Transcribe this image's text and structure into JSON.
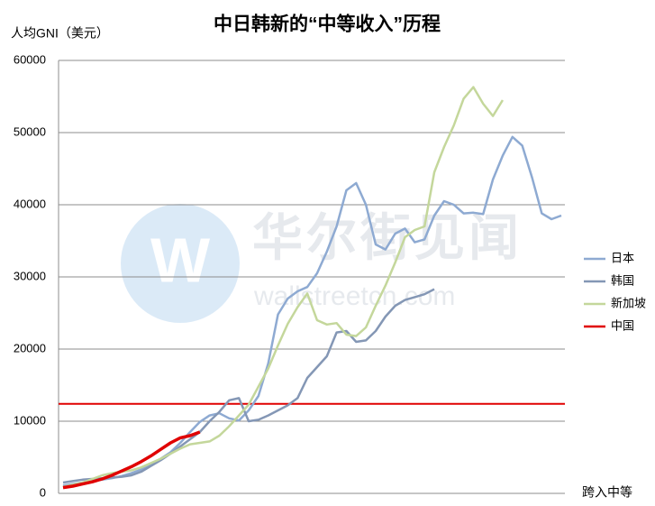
{
  "chart_data": {
    "type": "line",
    "title": "中日韩新的“中等收入”历程",
    "ylabel": "人均GNI（美元）",
    "xlabel": "跨入中等",
    "watermark": {
      "name": "华尔街见闻",
      "url": "wallstreetcn.com"
    },
    "categories": [
      null,
      null,
      null,
      null,
      null,
      null,
      null,
      null,
      null,
      null,
      null,
      null,
      null,
      null,
      null,
      null,
      null,
      null,
      null,
      null,
      null,
      null,
      null,
      null,
      null,
      null,
      null,
      null,
      null,
      null,
      null,
      null,
      null,
      null,
      null,
      null,
      null,
      null,
      null,
      null,
      null,
      null,
      null,
      null,
      null,
      null,
      null,
      null,
      null,
      null,
      null,
      null
    ],
    "series": [
      {
        "name": "日本",
        "color": "#8eaad2",
        "values": [
          1100,
          1300,
          1500,
          1700,
          1900,
          2100,
          2400,
          2800,
          3300,
          4000,
          4800,
          5700,
          7000,
          8500,
          9900,
          10800,
          11100,
          10400,
          10100,
          11500,
          13500,
          18000,
          24800,
          27000,
          28000,
          28600,
          30500,
          33500,
          37000,
          42000,
          43000,
          40000,
          34500,
          33800,
          36000,
          36700,
          34800,
          35200,
          38500,
          40500,
          40000,
          38800,
          38900,
          38700,
          43500,
          46800,
          49400,
          48200,
          43800,
          38800,
          38000,
          38500
        ]
      },
      {
        "name": "韩国",
        "color": "#8497b5",
        "values": [
          1500,
          1700,
          1900,
          2000,
          2100,
          2200,
          2300,
          2500,
          3000,
          3800,
          4600,
          5500,
          6500,
          7500,
          8500,
          10000,
          11300,
          12900,
          13200,
          10000,
          10200,
          10800,
          11500,
          12200,
          13200,
          16000,
          17500,
          19000,
          22300,
          22500,
          21000,
          21200,
          22500,
          24500,
          26000,
          26800,
          27200,
          27600,
          28300,
          null,
          null,
          null,
          null,
          null,
          null,
          null,
          null,
          null,
          null,
          null,
          null,
          null
        ]
      },
      {
        "name": "新加坡",
        "color": "#c4d79b",
        "values": [
          900,
          1200,
          1500,
          2000,
          2500,
          2800,
          3000,
          3200,
          3600,
          4200,
          4800,
          5500,
          6200,
          6800,
          7000,
          7200,
          8000,
          9300,
          10800,
          12300,
          14800,
          17300,
          20500,
          23500,
          25800,
          27700,
          24000,
          23400,
          23600,
          22000,
          21800,
          23000,
          26000,
          28800,
          32000,
          35500,
          36500,
          37000,
          44500,
          48000,
          51000,
          54700,
          56300,
          54000,
          52300,
          54500,
          null,
          null,
          null,
          null,
          null,
          null
        ]
      },
      {
        "name": "中国",
        "color": "#e00000",
        "values": [
          800,
          1000,
          1300,
          1600,
          2000,
          2500,
          3100,
          3700,
          4400,
          5200,
          6100,
          7000,
          7700,
          8000,
          8500,
          null,
          null,
          null,
          null,
          null,
          null,
          null,
          null,
          null,
          null,
          null,
          null,
          null,
          null,
          null,
          null,
          null,
          null,
          null,
          null,
          null,
          null,
          null,
          null,
          null,
          null,
          null,
          null,
          null,
          null,
          null,
          null,
          null,
          null,
          null,
          null,
          null
        ]
      }
    ],
    "reference_line": {
      "value": 12400,
      "color": "#e00000"
    },
    "ylim": [
      0,
      60000
    ],
    "yticks": [
      0,
      10000,
      20000,
      30000,
      40000,
      50000,
      60000
    ],
    "grid": true,
    "legend": "right"
  }
}
